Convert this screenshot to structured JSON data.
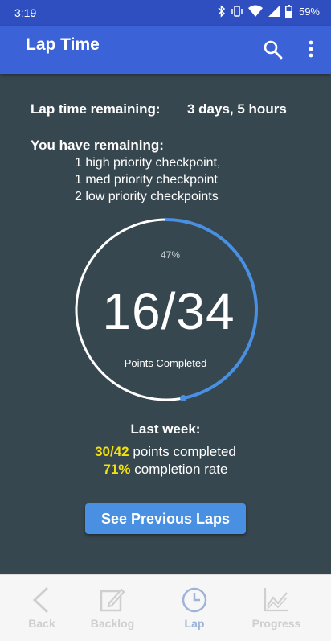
{
  "status_bar": {
    "time": "3:19",
    "battery": "59%",
    "icons": [
      "bluetooth-icon",
      "vibrate-icon",
      "wifi-icon",
      "signal-icon",
      "battery-icon"
    ]
  },
  "app_bar": {
    "title": "Lap Time",
    "actions": [
      "search-icon",
      "more-vert-icon"
    ]
  },
  "lap_remaining": {
    "label": "Lap time remaining:",
    "value": "3 days, 5 hours"
  },
  "remaining": {
    "heading": "You have remaining:",
    "items": [
      "1 high priority checkpoint,",
      "1 med priority checkpoint",
      "2 low priority checkpoints"
    ]
  },
  "progress": {
    "percent_label": "47%",
    "fraction": 0.47,
    "points": "16/34",
    "caption": "Points Completed",
    "colors": {
      "ring": "#ffffff",
      "progress": "#4a90e2"
    }
  },
  "last_week": {
    "heading": "Last week:",
    "points_value": "30/42",
    "points_text": " points completed",
    "rate_value": "71%",
    "rate_text": " completion rate",
    "highlight_color": "#f5e10a"
  },
  "button": {
    "label": "See Previous Laps"
  },
  "bottom_nav": {
    "items": [
      {
        "label": "Back",
        "icon": "chevron-left-icon"
      },
      {
        "label": "Backlog",
        "icon": "edit-icon"
      },
      {
        "label": "Lap",
        "icon": "clock-icon",
        "active": true
      },
      {
        "label": "Progress",
        "icon": "chart-icon"
      }
    ]
  }
}
